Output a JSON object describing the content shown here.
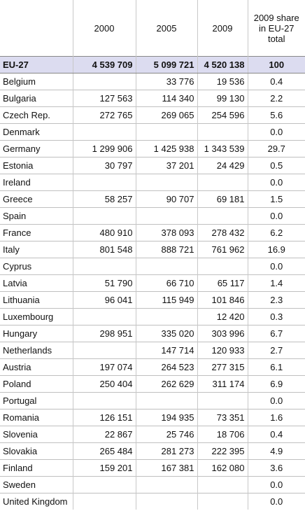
{
  "table": {
    "header": [
      "2000",
      "2005",
      "2009",
      "2009 share in EU-27 total"
    ],
    "rows": [
      [
        "EU-27",
        "4 539 709",
        "5 099 721",
        "4 520 138",
        "100"
      ],
      [
        "Belgium",
        null,
        "33 776",
        "19 536",
        "0.4"
      ],
      [
        "Bulgaria",
        "127 563",
        "114 340",
        "99 130",
        "2.2"
      ],
      [
        "Czech Rep.",
        "272 765",
        "269 065",
        "254 596",
        "5.6"
      ],
      [
        "Denmark",
        null,
        null,
        null,
        "0.0"
      ],
      [
        "Germany",
        "1 299 906",
        "1 425 938",
        "1 343 539",
        "29.7"
      ],
      [
        "Estonia",
        "30 797",
        "37 201",
        "24 429",
        "0.5"
      ],
      [
        "Ireland",
        null,
        null,
        null,
        "0.0"
      ],
      [
        "Greece",
        "58 257",
        "90 707",
        "69 181",
        "1.5"
      ],
      [
        "Spain",
        null,
        null,
        null,
        "0.0"
      ],
      [
        "France",
        "480 910",
        "378 093",
        "278 432",
        "6.2"
      ],
      [
        "Italy",
        "801 548",
        "888 721",
        "761 962",
        "16.9"
      ],
      [
        "Cyprus",
        null,
        null,
        null,
        "0.0"
      ],
      [
        "Latvia",
        "51 790",
        "66 710",
        "65 117",
        "1.4"
      ],
      [
        "Lithuania",
        "96 041",
        "115 949",
        "101 846",
        "2.3"
      ],
      [
        "Luxembourg",
        null,
        null,
        "12 420",
        "0.3"
      ],
      [
        "Hungary",
        "298 951",
        "335 020",
        "303 996",
        "6.7"
      ],
      [
        "Netherlands",
        null,
        "147 714",
        "120 933",
        "2.7"
      ],
      [
        "Austria",
        "197 074",
        "264 523",
        "277 315",
        "6.1"
      ],
      [
        "Poland",
        "250 404",
        "262 629",
        "311 174",
        "6.9"
      ],
      [
        "Portugal",
        null,
        null,
        null,
        "0.0"
      ],
      [
        "Romania",
        "126 151",
        "194 935",
        "73 351",
        "1.6"
      ],
      [
        "Slovenia",
        "22 867",
        "25 746",
        "18 706",
        "0.4"
      ],
      [
        "Slovakia",
        "265 484",
        "281 273",
        "222 395",
        "4.9"
      ],
      [
        "Finland",
        "159 201",
        "167 381",
        "162 080",
        "3.6"
      ],
      [
        "Sweden",
        null,
        null,
        null,
        "0.0"
      ],
      [
        "United Kingdom",
        null,
        null,
        null,
        "0.0"
      ]
    ]
  }
}
